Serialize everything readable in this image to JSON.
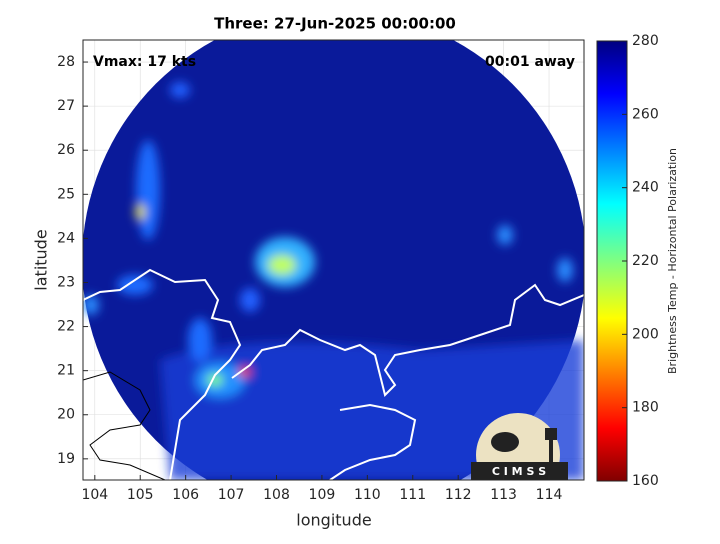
{
  "chart_data": {
    "type": "map",
    "title": "Three: 27-Jun-2025 00:00:00",
    "annotations": [
      "Vmax: 17 kts",
      "00:01 away"
    ],
    "xlabel": "longitude",
    "ylabel": "latitude",
    "xlim": [
      103.74,
      114.77
    ],
    "xticks": [
      104,
      105,
      106,
      107,
      108,
      109,
      110,
      111,
      112,
      113,
      114
    ],
    "ylim": [
      18.52,
      28.5
    ],
    "yticks": [
      19,
      20,
      21,
      22,
      23,
      24,
      25,
      26,
      27,
      28
    ],
    "grid": true,
    "colorbar": {
      "label": "Brightness Temp - Horizontal Polarization",
      "lim": [
        160,
        280
      ],
      "ticks": [
        160,
        180,
        200,
        220,
        240,
        260,
        280
      ]
    },
    "logo": "C I M S S"
  }
}
